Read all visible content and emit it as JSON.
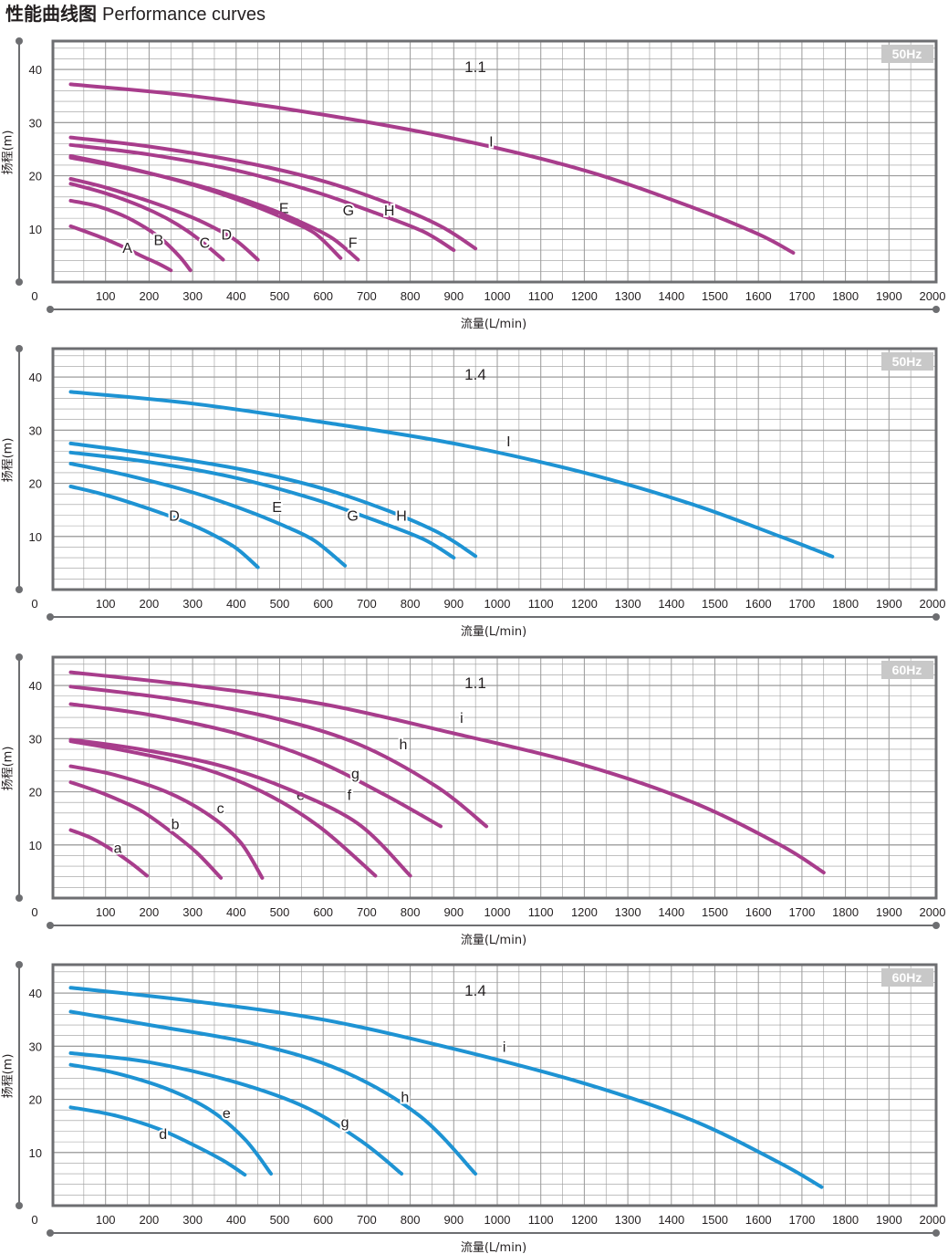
{
  "title": {
    "zh": "性能曲线图",
    "en": "Performance curves"
  },
  "colors": {
    "magenta": "#a83d8c",
    "blue": "#1e93d3",
    "grid": "#9a9a9a",
    "frame": "#6d6e71",
    "badge_bg": "#c8c8c8",
    "text": "#231f20"
  },
  "chart_data": [
    {
      "type": "line",
      "badge": "50Hz",
      "model": "1.1",
      "xlabel": "流量(L/min)",
      "ylabel": "扬程(m)",
      "xlim": [
        0,
        2000
      ],
      "ylim": [
        0,
        45
      ],
      "xticks": [
        100,
        200,
        300,
        400,
        500,
        600,
        700,
        800,
        900,
        1000,
        1100,
        1200,
        1300,
        1400,
        1500,
        1600,
        1700,
        1800,
        1900,
        2000
      ],
      "yticks": [
        10,
        20,
        30,
        40
      ],
      "origin_label": "0",
      "color": "#a83d8c",
      "grid": true,
      "series": [
        {
          "name": "A",
          "x": [
            20,
            80,
            130,
            180,
            220,
            250
          ],
          "y": [
            10.5,
            8.7,
            7,
            5,
            3.5,
            2.2
          ],
          "label_at": [
            150,
            6.5
          ]
        },
        {
          "name": "B",
          "x": [
            20,
            80,
            140,
            190,
            230,
            270,
            295
          ],
          "y": [
            15.3,
            14.3,
            12.5,
            10.3,
            8,
            4.8,
            2.2
          ],
          "label_at": [
            222,
            8
          ]
        },
        {
          "name": "C",
          "x": [
            20,
            100,
            180,
            240,
            290,
            330,
            370
          ],
          "y": [
            18.5,
            16.7,
            14.3,
            12,
            9.5,
            7,
            4.2
          ],
          "label_at": [
            328,
            7.5
          ]
        },
        {
          "name": "D",
          "x": [
            20,
            100,
            200,
            280,
            340,
            400,
            450
          ],
          "y": [
            19.4,
            17.8,
            15.2,
            12.8,
            10.6,
            7.8,
            4.2
          ],
          "label_at": [
            378,
            9
          ]
        },
        {
          "name": "E",
          "x": [
            20,
            150,
            300,
            420,
            510,
            580,
            640
          ],
          "y": [
            23.7,
            21.5,
            18.3,
            15,
            12,
            9.2,
            4.5
          ],
          "label_at": [
            510,
            14
          ]
        },
        {
          "name": "F",
          "x": [
            20,
            160,
            320,
            450,
            540,
            620,
            680
          ],
          "y": [
            23.4,
            21.2,
            18,
            14.6,
            11.6,
            8.3,
            4.2
          ],
          "label_at": [
            668,
            7.5
          ]
        },
        {
          "name": "G",
          "x": [
            20,
            200,
            400,
            580,
            720,
            830,
            900
          ],
          "y": [
            25.8,
            24,
            21,
            17,
            13,
            9.5,
            6
          ],
          "label_at": [
            658,
            13.6
          ]
        },
        {
          "name": "H",
          "x": [
            20,
            200,
            420,
            600,
            750,
            870,
            950
          ],
          "y": [
            27.2,
            25.5,
            22.5,
            19,
            14.8,
            10.5,
            6.3
          ],
          "label_at": [
            752,
            13.6
          ]
        },
        {
          "name": "I",
          "x": [
            20,
            300,
            600,
            900,
            1200,
            1450,
            1600,
            1680
          ],
          "y": [
            37.2,
            35,
            31.5,
            27,
            21,
            14,
            9,
            5.5
          ],
          "label_at": [
            986,
            26.5
          ]
        }
      ]
    },
    {
      "type": "line",
      "badge": "50Hz",
      "model": "1.4",
      "xlabel": "流量(L/min)",
      "ylabel": "扬程(m)",
      "xlim": [
        0,
        2000
      ],
      "ylim": [
        0,
        45
      ],
      "xticks": [
        100,
        200,
        300,
        400,
        500,
        600,
        700,
        800,
        900,
        1000,
        1100,
        1200,
        1300,
        1400,
        1500,
        1600,
        1700,
        1800,
        1900,
        2000
      ],
      "yticks": [
        10,
        20,
        30,
        40
      ],
      "origin_label": "0",
      "color": "#1e93d3",
      "grid": true,
      "series": [
        {
          "name": "D",
          "x": [
            20,
            100,
            200,
            280,
            340,
            400,
            450
          ],
          "y": [
            19.4,
            17.8,
            15.2,
            12.8,
            10.6,
            7.8,
            4.2
          ],
          "label_at": [
            258,
            14
          ]
        },
        {
          "name": "E",
          "x": [
            20,
            150,
            300,
            420,
            510,
            580,
            650
          ],
          "y": [
            23.7,
            21.5,
            18.3,
            15,
            12,
            9.2,
            4.5
          ],
          "label_at": [
            494,
            15.6
          ]
        },
        {
          "name": "G",
          "x": [
            20,
            200,
            400,
            580,
            720,
            830,
            900
          ],
          "y": [
            25.8,
            24,
            21,
            17,
            13,
            9.5,
            6
          ],
          "label_at": [
            668,
            14
          ]
        },
        {
          "name": "H",
          "x": [
            20,
            200,
            420,
            600,
            750,
            870,
            950
          ],
          "y": [
            27.5,
            25.5,
            22.5,
            19,
            14.8,
            10.5,
            6.3
          ],
          "label_at": [
            780,
            14
          ]
        },
        {
          "name": "I",
          "x": [
            20,
            300,
            600,
            900,
            1200,
            1450,
            1650,
            1770
          ],
          "y": [
            37.2,
            35,
            31.5,
            27.5,
            22,
            16,
            10,
            6.2
          ],
          "label_at": [
            1026,
            28
          ]
        }
      ]
    },
    {
      "type": "line",
      "badge": "60Hz",
      "model": "1.1",
      "xlabel": "流量(L/min)",
      "ylabel": "扬程(m)",
      "xlim": [
        0,
        2000
      ],
      "ylim": [
        0,
        45
      ],
      "xticks": [
        100,
        200,
        300,
        400,
        500,
        600,
        700,
        800,
        900,
        1000,
        1100,
        1200,
        1300,
        1400,
        1500,
        1600,
        1700,
        1800,
        1900,
        2000
      ],
      "yticks": [
        10,
        20,
        30,
        40
      ],
      "origin_label": "0",
      "color": "#a83d8c",
      "grid": true,
      "series": [
        {
          "name": "a",
          "x": [
            20,
            70,
            120,
            160,
            195
          ],
          "y": [
            12.8,
            11.2,
            8.8,
            6.5,
            4.2
          ],
          "label_at": [
            128,
            9.5
          ]
        },
        {
          "name": "b",
          "x": [
            20,
            100,
            180,
            250,
            310,
            365
          ],
          "y": [
            21.8,
            19.5,
            16.5,
            12.5,
            8.5,
            3.8
          ],
          "label_at": [
            260,
            14
          ]
        },
        {
          "name": "c",
          "x": [
            20,
            120,
            240,
            340,
            410,
            460
          ],
          "y": [
            24.8,
            23.2,
            20,
            15.5,
            10.5,
            3.8
          ],
          "label_at": [
            364,
            17
          ]
        },
        {
          "name": "e",
          "x": [
            20,
            160,
            320,
            460,
            590,
            720
          ],
          "y": [
            29.5,
            27.5,
            24.5,
            20,
            13.5,
            4.2
          ],
          "label_at": [
            548,
            19.5
          ]
        },
        {
          "name": "f",
          "x": [
            20,
            180,
            360,
            520,
            680,
            800
          ],
          "y": [
            29.8,
            28,
            25,
            20.5,
            14,
            4.2
          ],
          "label_at": [
            660,
            19.5
          ]
        },
        {
          "name": "g",
          "x": [
            20,
            200,
            400,
            580,
            740,
            870
          ],
          "y": [
            36.5,
            34.5,
            31,
            26,
            19.5,
            13.5
          ],
          "label_at": [
            674,
            23.5
          ]
        },
        {
          "name": "h",
          "x": [
            20,
            250,
            480,
            680,
            860,
            975
          ],
          "y": [
            39.8,
            37.5,
            34,
            29,
            21,
            13.5
          ],
          "label_at": [
            784,
            29
          ]
        },
        {
          "name": "i",
          "x": [
            20,
            300,
            600,
            900,
            1200,
            1450,
            1650,
            1750
          ],
          "y": [
            42.5,
            40,
            36.5,
            31,
            25,
            18,
            10,
            4.8
          ],
          "label_at": [
            918,
            34
          ]
        }
      ]
    },
    {
      "type": "line",
      "badge": "60Hz",
      "model": "1.4",
      "xlabel": "流量(L/min)",
      "ylabel": "扬程(m)",
      "xlim": [
        0,
        2000
      ],
      "ylim": [
        0,
        45
      ],
      "xticks": [
        100,
        200,
        300,
        400,
        500,
        600,
        700,
        800,
        900,
        1000,
        1100,
        1200,
        1300,
        1400,
        1500,
        1600,
        1700,
        1800,
        1900,
        2000
      ],
      "yticks": [
        10,
        20,
        30,
        40
      ],
      "origin_label": "0",
      "color": "#1e93d3",
      "grid": true,
      "series": [
        {
          "name": "d",
          "x": [
            20,
            120,
            220,
            300,
            370,
            420
          ],
          "y": [
            18.5,
            17,
            14.5,
            11.5,
            8.5,
            5.8
          ],
          "label_at": [
            232,
            13.6
          ]
        },
        {
          "name": "e",
          "x": [
            20,
            120,
            240,
            340,
            420,
            480
          ],
          "y": [
            26.5,
            25,
            22,
            18,
            12.5,
            6
          ],
          "label_at": [
            378,
            17.5
          ]
        },
        {
          "name": "g",
          "x": [
            20,
            200,
            400,
            560,
            690,
            780
          ],
          "y": [
            28.7,
            27,
            23.2,
            18.5,
            12,
            6
          ],
          "label_at": [
            650,
            15.8
          ]
        },
        {
          "name": "h",
          "x": [
            20,
            200,
            440,
            640,
            820,
            950
          ],
          "y": [
            36.5,
            34,
            30.5,
            25.5,
            17,
            6
          ],
          "label_at": [
            788,
            20.5
          ]
        },
        {
          "name": "i",
          "x": [
            20,
            300,
            600,
            900,
            1200,
            1450,
            1650,
            1745
          ],
          "y": [
            41,
            38.5,
            35,
            29.5,
            23,
            16,
            8,
            3.5
          ],
          "label_at": [
            1016,
            30
          ]
        }
      ]
    }
  ]
}
